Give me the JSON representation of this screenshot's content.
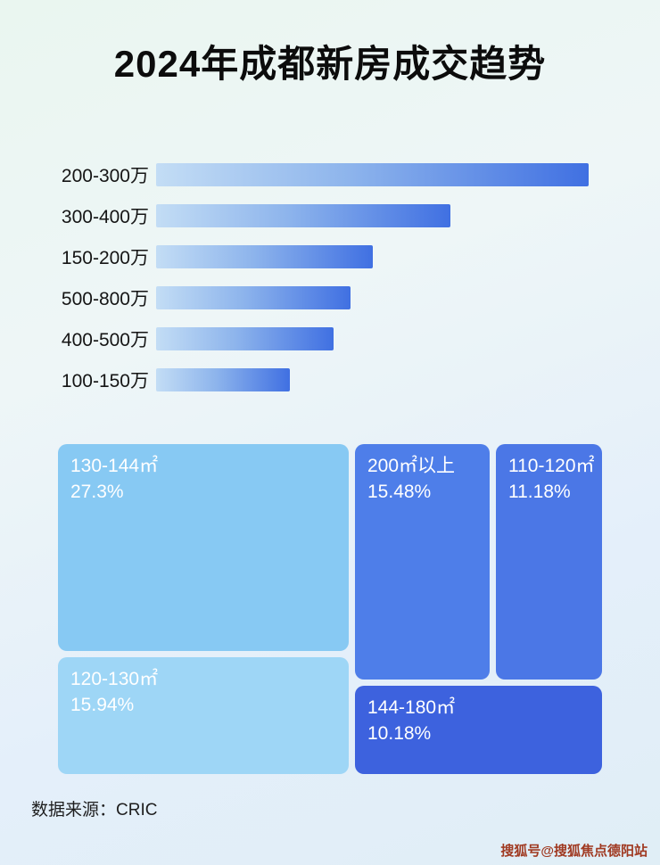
{
  "title": "2024年成都新房成交趋势",
  "chart_data": [
    {
      "type": "bar",
      "orientation": "horizontal",
      "title": "2024年成都新房成交趋势",
      "categories": [
        "200-300万",
        "300-400万",
        "150-200万",
        "500-800万",
        "400-500万",
        "100-150万"
      ],
      "values": [
        100,
        68,
        50,
        45,
        41,
        31
      ],
      "unit": "relative_length_pct",
      "bar_gradient": [
        "#C3DDF5",
        "#4070E2"
      ],
      "grid": false,
      "legend": false
    },
    {
      "type": "treemap",
      "items": [
        {
          "label": "130-144㎡",
          "value": "27.3%",
          "color": "#87C9F3"
        },
        {
          "label": "200㎡以上",
          "value": "15.48%",
          "color": "#4E7EE9"
        },
        {
          "label": "110-120㎡",
          "value": "11.18%",
          "color": "#4B77E6"
        },
        {
          "label": "120-130㎡",
          "value": "15.94%",
          "color": "#9ED6F6"
        },
        {
          "label": "144-180㎡",
          "value": "10.18%",
          "color": "#3D62DE"
        }
      ]
    }
  ],
  "footer": {
    "source_label": "数据来源：CRIC"
  },
  "watermark": {
    "text": "搜狐号@搜狐焦点德阳站",
    "color": "#A03A22"
  }
}
